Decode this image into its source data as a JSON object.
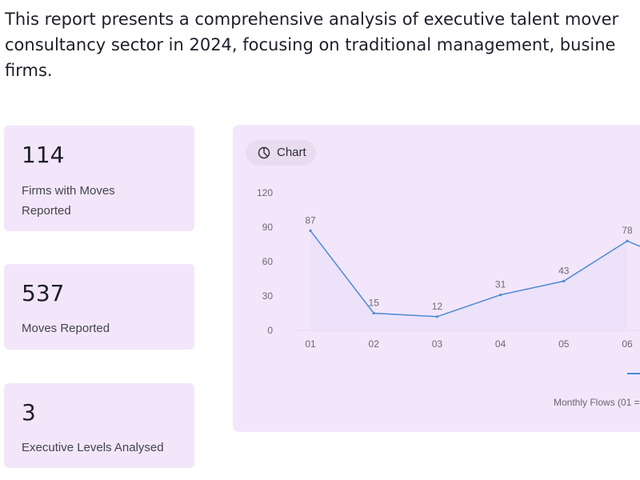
{
  "intro": {
    "line1": "This report presents a comprehensive analysis of executive talent mover",
    "line2": "consultancy sector in 2024, focusing on traditional management, busine",
    "line3": "firms."
  },
  "stats": [
    {
      "value": "114",
      "label_line1": "Firms with Moves",
      "label_line2": "Reported"
    },
    {
      "value": "537",
      "label": "Moves Reported"
    },
    {
      "value": "3",
      "label": "Executive Levels Analysed"
    }
  ],
  "chart_panel": {
    "toggle_label": "Chart",
    "footnote": "Monthly Flows (01 ="
  },
  "colors": {
    "line": "#4a8ad4",
    "fill": "#e8e0fa",
    "card": "#f3e6fa"
  },
  "chart_data": {
    "type": "line",
    "categories": [
      "01",
      "02",
      "03",
      "04",
      "05",
      "06"
    ],
    "values": [
      87,
      15,
      12,
      31,
      43,
      78
    ],
    "y_ticks": [
      "0",
      "30",
      "60",
      "90",
      "120"
    ],
    "ylim": [
      0,
      120
    ],
    "area_fill": true,
    "data_labels": true
  }
}
